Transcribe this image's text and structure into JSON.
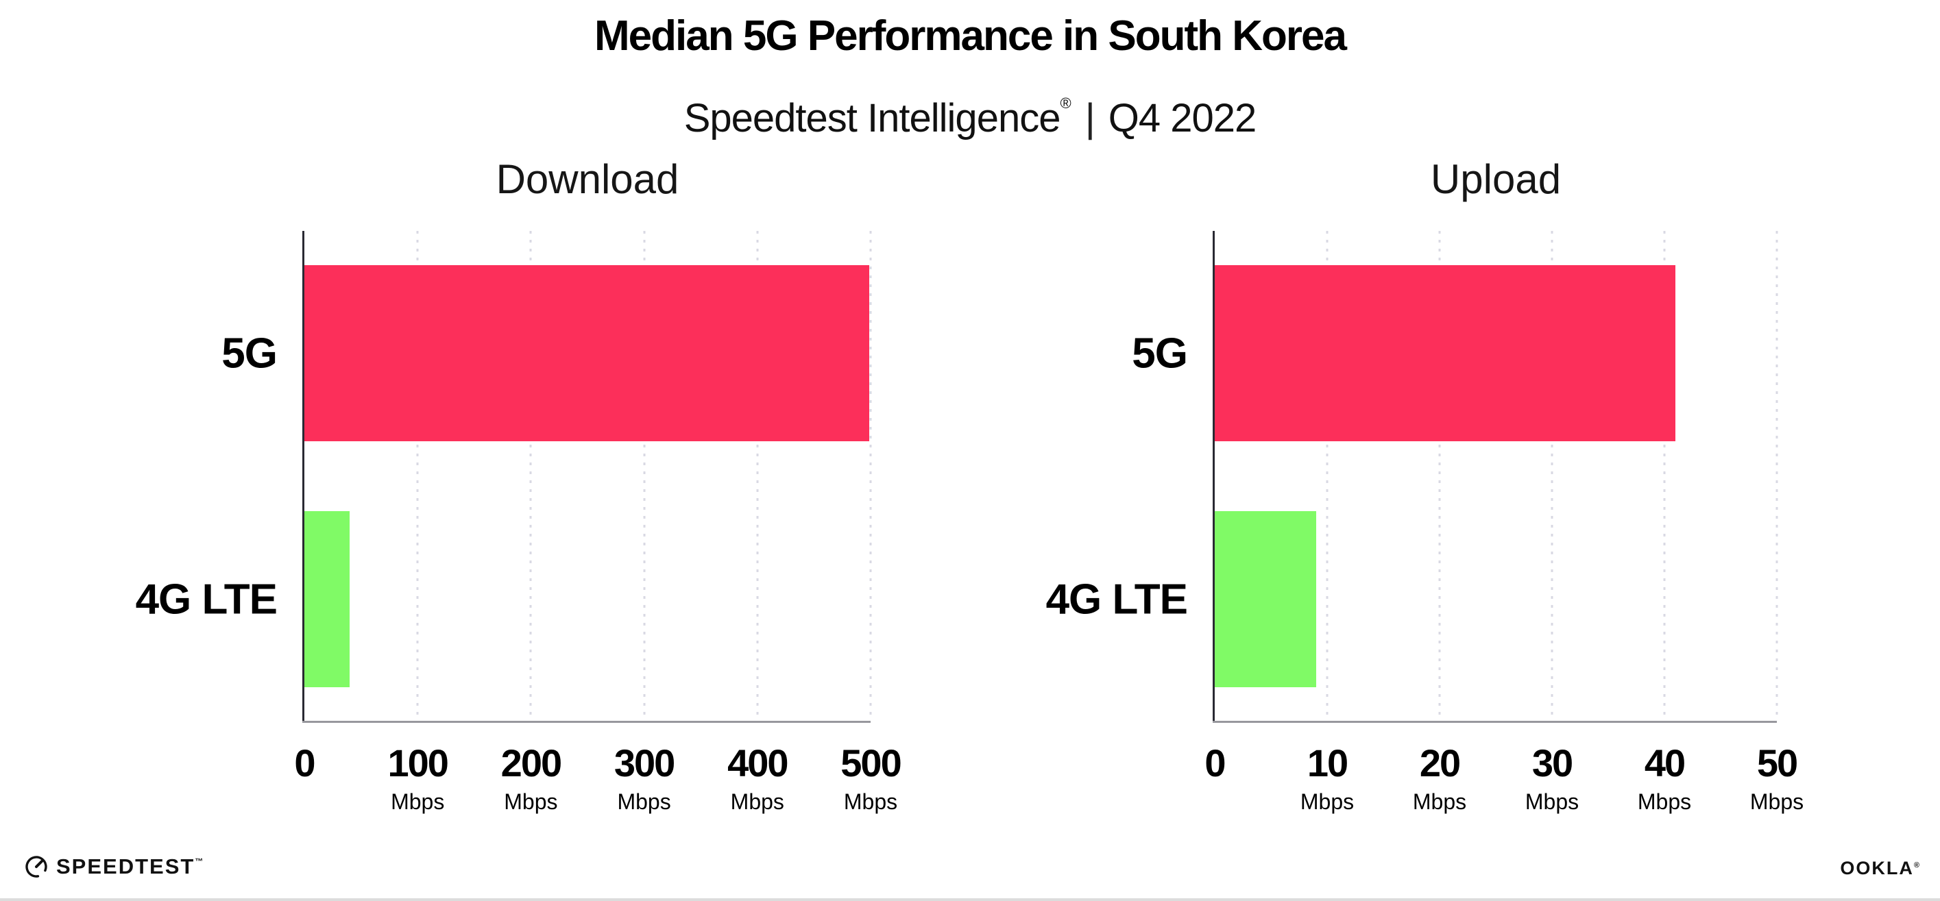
{
  "header": {
    "title": "Median 5G Performance in South Korea",
    "subtitle_brand": "Speedtest Intelligence",
    "subtitle_reg": "®",
    "subtitle_sep": "|",
    "subtitle_period": "Q4 2022"
  },
  "colors": {
    "bar_5g": "#fc2f5a",
    "bar_4g": "#80fa66",
    "gridline": "#d9d9e3",
    "y_axis": "#2a2a33",
    "x_axis": "#98989d"
  },
  "chart_data": [
    {
      "type": "bar",
      "orientation": "horizontal",
      "title": "Download",
      "categories": [
        "5G",
        "4G LTE"
      ],
      "values": [
        499,
        40
      ],
      "unit": "Mbps",
      "xlim": [
        0,
        500
      ],
      "ticks": [
        0,
        100,
        200,
        300,
        400,
        500
      ],
      "tick_unit": "Mbps",
      "grid": "vertical-dotted",
      "legend": "none",
      "bar_colors": [
        "#fc2f5a",
        "#80fa66"
      ]
    },
    {
      "type": "bar",
      "orientation": "horizontal",
      "title": "Upload",
      "categories": [
        "5G",
        "4G LTE"
      ],
      "values": [
        41,
        9
      ],
      "unit": "Mbps",
      "xlim": [
        0,
        50
      ],
      "ticks": [
        0,
        10,
        20,
        30,
        40,
        50
      ],
      "tick_unit": "Mbps",
      "grid": "vertical-dotted",
      "legend": "none",
      "bar_colors": [
        "#fc2f5a",
        "#80fa66"
      ]
    }
  ],
  "footer": {
    "speedtest_label": "SPEEDTEST",
    "speedtest_tm": "™",
    "ookla_label": "OOKLA",
    "ookla_reg": "®"
  }
}
